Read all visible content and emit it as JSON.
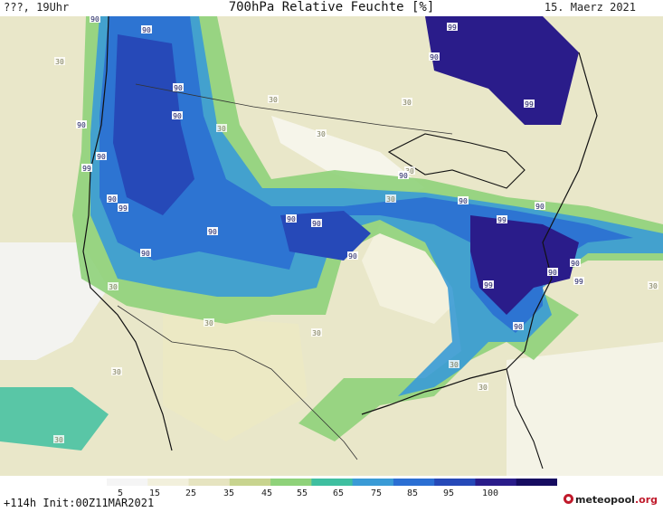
{
  "header": {
    "left_text": "???, 19Uhr",
    "title": "700hPa Relative Feuchte [%]",
    "date": "15. Maerz 2021"
  },
  "footer": {
    "init_text": "+114h Init:00Z11MAR2021",
    "logo_text": "meteopool",
    "logo_suffix": ".org"
  },
  "legend": {
    "ticks": [
      "5",
      "15",
      "25",
      "35",
      "45",
      "55",
      "65",
      "75",
      "85",
      "95",
      "100"
    ],
    "colors": [
      "#f5f5f5",
      "#f2f0dc",
      "#e6e4c0",
      "#c8d48f",
      "#8fd27a",
      "#3fbfa0",
      "#3a9bd6",
      "#2b6fd3",
      "#2649b8",
      "#2a1c8a",
      "#160c60"
    ]
  },
  "contour_labels": [
    {
      "text": "90"
    },
    {
      "text": "90"
    },
    {
      "text": "30"
    },
    {
      "text": "99"
    },
    {
      "text": "90"
    },
    {
      "text": "90"
    },
    {
      "text": "30"
    },
    {
      "text": "99"
    },
    {
      "text": "90"
    },
    {
      "text": "30"
    },
    {
      "text": "90"
    },
    {
      "text": "30"
    },
    {
      "text": "90"
    },
    {
      "text": "99"
    },
    {
      "text": "90"
    },
    {
      "text": "30"
    },
    {
      "text": "90"
    },
    {
      "text": "90"
    },
    {
      "text": "99"
    },
    {
      "text": "90"
    },
    {
      "text": "90"
    },
    {
      "text": "90"
    },
    {
      "text": "99"
    },
    {
      "text": "90"
    },
    {
      "text": "90"
    },
    {
      "text": "30"
    },
    {
      "text": "90"
    },
    {
      "text": "30"
    },
    {
      "text": "99"
    },
    {
      "text": "90"
    },
    {
      "text": "30"
    },
    {
      "text": "90"
    },
    {
      "text": "30"
    },
    {
      "text": "30"
    },
    {
      "text": "30"
    },
    {
      "text": "30"
    },
    {
      "text": "30"
    },
    {
      "text": "30"
    },
    {
      "text": "90"
    },
    {
      "text": "99"
    },
    {
      "text": "30"
    }
  ]
}
